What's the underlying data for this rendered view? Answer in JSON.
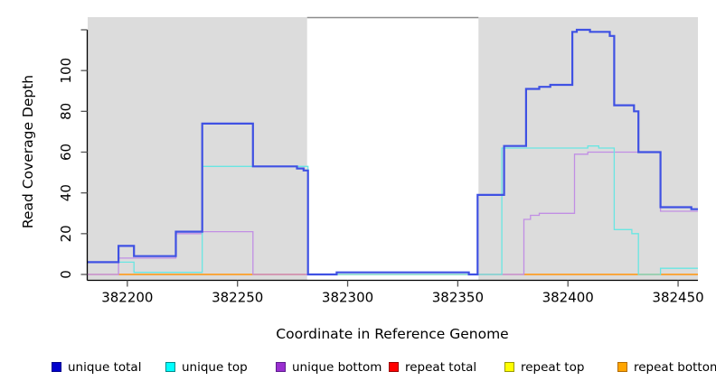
{
  "chart_data": {
    "type": "line",
    "subtype": "step-coverage",
    "title": "",
    "xlabel": "Coordinate in Reference Genome",
    "ylabel": "Read Coverage Depth",
    "x_range": [
      382182,
      382459
    ],
    "y_range": [
      0,
      126
    ],
    "x_ticks": [
      382200,
      382250,
      382300,
      382350,
      382400,
      382450
    ],
    "y_ticks": [
      {
        "v": 0,
        "label": "0"
      },
      {
        "v": 20,
        "label": "20"
      },
      {
        "v": 40,
        "label": "40"
      },
      {
        "v": 60,
        "label": "60"
      },
      {
        "v": 80,
        "label": "80"
      },
      {
        "v": 100,
        "label": "100"
      },
      {
        "v": 120,
        "label": ""
      }
    ],
    "grid": false,
    "shade_color": "#dcdcdc",
    "gap_border_color": "#8c8c8c",
    "shaded_regions": [
      {
        "x0": 382182,
        "x1": 382281.6
      },
      {
        "x0": 382359.4,
        "x1": 382459
      }
    ],
    "series": [
      {
        "name": "repeat top",
        "color": "#e6e65a",
        "width": 1.3,
        "segments": [
          [
            [
              382182,
              0
            ],
            [
              382459,
              0
            ]
          ]
        ]
      },
      {
        "name": "repeat total",
        "color": "#e25a78",
        "width": 1.3,
        "segments": [
          [
            [
              382182,
              0
            ],
            [
              382459,
              0
            ]
          ]
        ]
      },
      {
        "name": "repeat bottom",
        "color": "#ff9e1b",
        "width": 1.5,
        "segments": [
          [
            [
              382196,
              0
            ],
            [
              382281,
              0
            ]
          ],
          [
            [
              382380,
              0
            ],
            [
              382459,
              0
            ]
          ]
        ]
      },
      {
        "name": "unique bottom",
        "color": "#c18ee4",
        "width": 1.3,
        "segments": [
          [
            [
              382182,
              0
            ],
            [
              382196,
              8
            ],
            [
              382222,
              20
            ],
            [
              382234,
              21
            ],
            [
              382257,
              0
            ],
            [
              382295,
              1
            ],
            [
              382355,
              0
            ],
            [
              382380,
              27
            ],
            [
              382383,
              29
            ],
            [
              382387,
              30
            ],
            [
              382403,
              59
            ],
            [
              382409,
              60
            ],
            [
              382442,
              31
            ],
            [
              382459,
              31
            ]
          ]
        ]
      },
      {
        "name": "unique top",
        "color": "#69e6e2",
        "width": 1.3,
        "segments": [
          [
            [
              382182,
              6
            ],
            [
              382203,
              1
            ],
            [
              382234,
              53
            ],
            [
              382282,
              0
            ],
            [
              382370,
              62
            ],
            [
              382409,
              63
            ],
            [
              382414,
              62
            ],
            [
              382421,
              22
            ],
            [
              382429,
              20
            ],
            [
              382432,
              0
            ],
            [
              382442,
              3
            ],
            [
              382459,
              3
            ]
          ]
        ]
      },
      {
        "name": "unique total",
        "color": "#3f51e3",
        "width": 2.2,
        "segments": [
          [
            [
              382182,
              6
            ],
            [
              382196,
              14
            ],
            [
              382203,
              9
            ],
            [
              382222,
              21
            ],
            [
              382234,
              74
            ],
            [
              382257,
              53
            ],
            [
              382277,
              52
            ],
            [
              382280,
              51
            ],
            [
              382282,
              0
            ],
            [
              382295,
              1
            ],
            [
              382355,
              0
            ],
            [
              382359,
              39
            ],
            [
              382371,
              63
            ],
            [
              382381,
              91
            ],
            [
              382387,
              92
            ],
            [
              382392,
              93
            ],
            [
              382402,
              119
            ],
            [
              382404,
              120
            ],
            [
              382410,
              119
            ],
            [
              382419,
              117
            ],
            [
              382421,
              83
            ],
            [
              382430,
              80
            ],
            [
              382432,
              60
            ],
            [
              382442,
              33
            ],
            [
              382456,
              32
            ],
            [
              382459,
              32
            ]
          ]
        ]
      }
    ],
    "legend_position": "bottom"
  },
  "legend": {
    "items": [
      {
        "label": "unique total",
        "fill": "#0000cd",
        "border": "#00008b"
      },
      {
        "label": "unique top",
        "fill": "#00ffff",
        "border": "#008b8b"
      },
      {
        "label": "unique bottom",
        "fill": "#9a2fd0",
        "border": "#5e1d8f"
      },
      {
        "label": "repeat total",
        "fill": "#ff0000",
        "border": "#990000"
      },
      {
        "label": "repeat top",
        "fill": "#ffff00",
        "border": "#9a9a00"
      },
      {
        "label": "repeat bottom",
        "fill": "#ffa500",
        "border": "#b36b00"
      }
    ]
  }
}
